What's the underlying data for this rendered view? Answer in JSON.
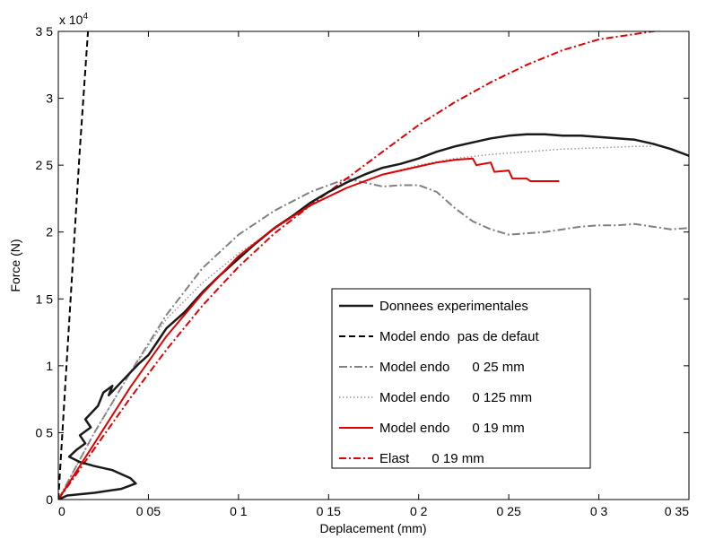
{
  "chart_data": {
    "type": "line",
    "title": "",
    "xlabel": "Deplacement (mm)",
    "ylabel": "Force (N)",
    "y_multiplier": "x 10",
    "y_multiplier_exp": "4",
    "xlim": [
      0,
      0.35
    ],
    "ylim": [
      0,
      3.5
    ],
    "xticks": [
      0,
      0.05,
      0.1,
      0.15,
      0.2,
      0.25,
      0.3,
      0.35
    ],
    "xtick_labels": [
      "0",
      "0 05",
      "0 1",
      "0 15",
      "0 2",
      "0 25",
      "0 3",
      "0 35"
    ],
    "yticks": [
      0,
      0.5,
      1,
      1.5,
      2,
      2.5,
      3,
      3.5
    ],
    "ytick_labels": [
      "0",
      "0 5",
      "1",
      "1 5",
      "2",
      "2 5",
      "3",
      "3 5"
    ],
    "grid": false,
    "legend_position": "bottom-right",
    "series": [
      {
        "name": "Donnees experimentales",
        "color": "#1a1a1a",
        "dash": "solid",
        "width": 2.5,
        "x": [
          0,
          0.005,
          0.02,
          0.035,
          0.043,
          0.04,
          0.03,
          0.02,
          0.012,
          0.006,
          0.01,
          0.015,
          0.012,
          0.018,
          0.015,
          0.022,
          0.025,
          0.03,
          0.028,
          0.035,
          0.04,
          0.045,
          0.05,
          0.055,
          0.06,
          0.07,
          0.08,
          0.09,
          0.1,
          0.11,
          0.12,
          0.13,
          0.14,
          0.15,
          0.16,
          0.17,
          0.18,
          0.19,
          0.2,
          0.21,
          0.22,
          0.23,
          0.24,
          0.25,
          0.26,
          0.27,
          0.28,
          0.29,
          0.3,
          0.31,
          0.32,
          0.33,
          0.34,
          0.35
        ],
        "y": [
          0,
          0.03,
          0.05,
          0.08,
          0.12,
          0.16,
          0.22,
          0.25,
          0.28,
          0.32,
          0.37,
          0.42,
          0.48,
          0.54,
          0.6,
          0.7,
          0.8,
          0.85,
          0.78,
          0.88,
          0.95,
          1.02,
          1.08,
          1.18,
          1.28,
          1.4,
          1.55,
          1.68,
          1.8,
          1.92,
          2.03,
          2.12,
          2.22,
          2.3,
          2.37,
          2.43,
          2.48,
          2.51,
          2.55,
          2.6,
          2.64,
          2.67,
          2.7,
          2.72,
          2.73,
          2.73,
          2.72,
          2.72,
          2.71,
          2.7,
          2.69,
          2.66,
          2.62,
          2.57
        ]
      },
      {
        "name": "Model endo  pas de defaut",
        "color": "#000000",
        "dash": "7,4",
        "width": 2,
        "x": [
          0,
          0.004,
          0.008,
          0.012,
          0.0165
        ],
        "y": [
          0,
          0.88,
          1.76,
          2.63,
          3.5
        ]
      },
      {
        "name": "Model endo      0 25 mm",
        "color": "#808080",
        "dash": "9,3,2,3",
        "width": 2,
        "x": [
          0,
          0.02,
          0.04,
          0.06,
          0.08,
          0.1,
          0.12,
          0.14,
          0.16,
          0.18,
          0.19,
          0.2,
          0.21,
          0.22,
          0.23,
          0.24,
          0.25,
          0.26,
          0.27,
          0.28,
          0.29,
          0.3,
          0.31,
          0.32,
          0.33,
          0.34,
          0.35
        ],
        "y": [
          0,
          0.5,
          0.95,
          1.38,
          1.73,
          1.98,
          2.16,
          2.3,
          2.4,
          2.34,
          2.35,
          2.35,
          2.3,
          2.18,
          2.08,
          2.02,
          1.98,
          1.99,
          2.0,
          2.02,
          2.04,
          2.05,
          2.05,
          2.06,
          2.04,
          2.02,
          2.03
        ]
      },
      {
        "name": "Model endo      0 125 mm",
        "color": "#999999",
        "dash": "1.5,2.5",
        "width": 1.5,
        "x": [
          0,
          0.02,
          0.04,
          0.06,
          0.08,
          0.1,
          0.12,
          0.14,
          0.16,
          0.18,
          0.2,
          0.22,
          0.24,
          0.26,
          0.28,
          0.3,
          0.32,
          0.33
        ],
        "y": [
          0,
          0.5,
          0.95,
          1.35,
          1.62,
          1.84,
          2.02,
          2.2,
          2.33,
          2.43,
          2.5,
          2.55,
          2.58,
          2.6,
          2.62,
          2.63,
          2.64,
          2.64
        ]
      },
      {
        "name": "Model endo      0 19 mm",
        "color": "#e00000",
        "dash": "solid",
        "width": 2,
        "x": [
          0,
          0.02,
          0.04,
          0.06,
          0.08,
          0.1,
          0.12,
          0.14,
          0.16,
          0.18,
          0.2,
          0.21,
          0.22,
          0.23,
          0.232,
          0.24,
          0.242,
          0.25,
          0.252,
          0.26,
          0.262,
          0.27,
          0.278
        ],
        "y": [
          0,
          0.42,
          0.84,
          1.22,
          1.54,
          1.82,
          2.03,
          2.2,
          2.33,
          2.43,
          2.49,
          2.52,
          2.54,
          2.55,
          2.5,
          2.52,
          2.45,
          2.46,
          2.4,
          2.4,
          2.38,
          2.38,
          2.38
        ]
      },
      {
        "name": "Elast      0 19 mm",
        "color": "#e00000",
        "dash": "8,3,2,3",
        "width": 2,
        "x": [
          0,
          0.02,
          0.04,
          0.06,
          0.08,
          0.1,
          0.12,
          0.14,
          0.16,
          0.18,
          0.2,
          0.22,
          0.24,
          0.26,
          0.28,
          0.3,
          0.32,
          0.34,
          0.35
        ],
        "y": [
          0,
          0.38,
          0.76,
          1.12,
          1.45,
          1.74,
          1.99,
          2.2,
          2.4,
          2.6,
          2.8,
          2.97,
          3.12,
          3.25,
          3.36,
          3.44,
          3.48,
          3.52,
          3.53
        ]
      }
    ]
  }
}
